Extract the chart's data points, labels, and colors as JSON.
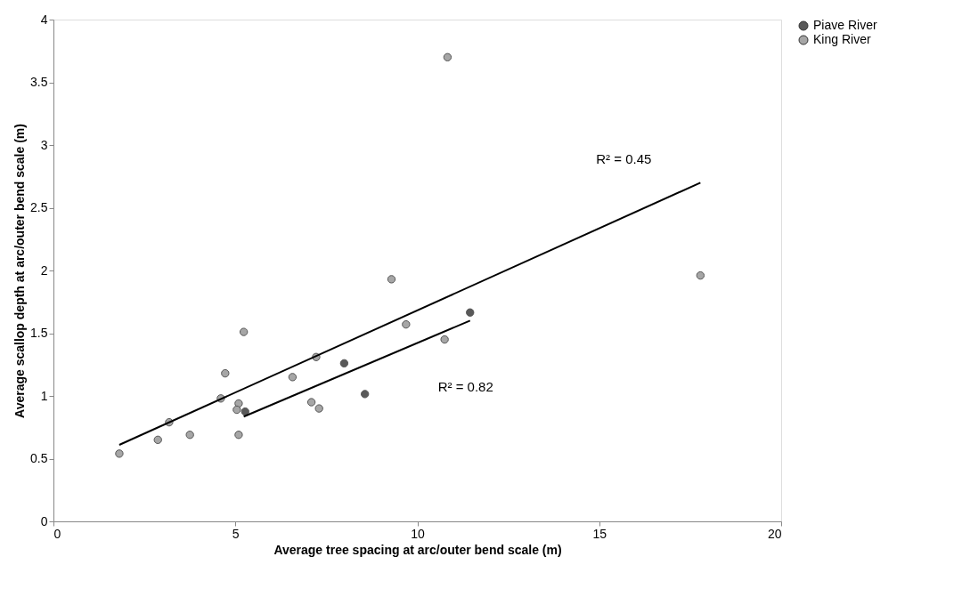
{
  "chart_data": {
    "type": "scatter",
    "xlabel": "Average tree spacing  at arc/outer bend scale  (m)",
    "ylabel": "Average scallop  depth at arc/outer bend scale  (m)",
    "xlim": [
      0,
      20
    ],
    "xticks": [
      0,
      5,
      10,
      15,
      20
    ],
    "ylim": [
      0,
      4
    ],
    "yticks": [
      0,
      0.5,
      1,
      1.5,
      2,
      2.5,
      3,
      3.5,
      4
    ],
    "grid": false,
    "legend": "right",
    "series": [
      {
        "name": "Piave River",
        "color": "#595959",
        "marker": "circle",
        "x": [
          5.27,
          7.99,
          8.56,
          11.45
        ],
        "values": [
          0.875,
          1.26,
          1.015,
          1.665
        ]
      },
      {
        "name": "King River",
        "color": "#a6a6a6",
        "marker": "circle",
        "x": [
          1.81,
          2.87,
          3.18,
          3.75,
          4.6,
          4.72,
          5.09,
          5.04,
          5.09,
          5.23,
          6.57,
          7.22,
          7.09,
          7.3,
          9.29,
          9.69,
          10.75,
          10.83,
          17.78
        ],
        "values": [
          0.54,
          0.65,
          0.79,
          0.69,
          0.98,
          1.18,
          0.94,
          0.89,
          0.69,
          1.51,
          1.15,
          1.31,
          0.95,
          0.9,
          1.93,
          1.57,
          1.45,
          3.7,
          1.96
        ]
      },
      {
        "type": "line",
        "color": "#000000",
        "marker": "none",
        "line_style": "solid",
        "x": [
          1.81,
          17.78
        ],
        "values": [
          0.61,
          2.7
        ]
      },
      {
        "type": "line",
        "color": "#000000",
        "marker": "none",
        "line_style": "solid",
        "x": [
          5.23,
          11.45
        ],
        "values": [
          0.835,
          1.6
        ]
      }
    ],
    "annotations": [
      "R² = 0.45",
      "R² = 0.82"
    ]
  }
}
